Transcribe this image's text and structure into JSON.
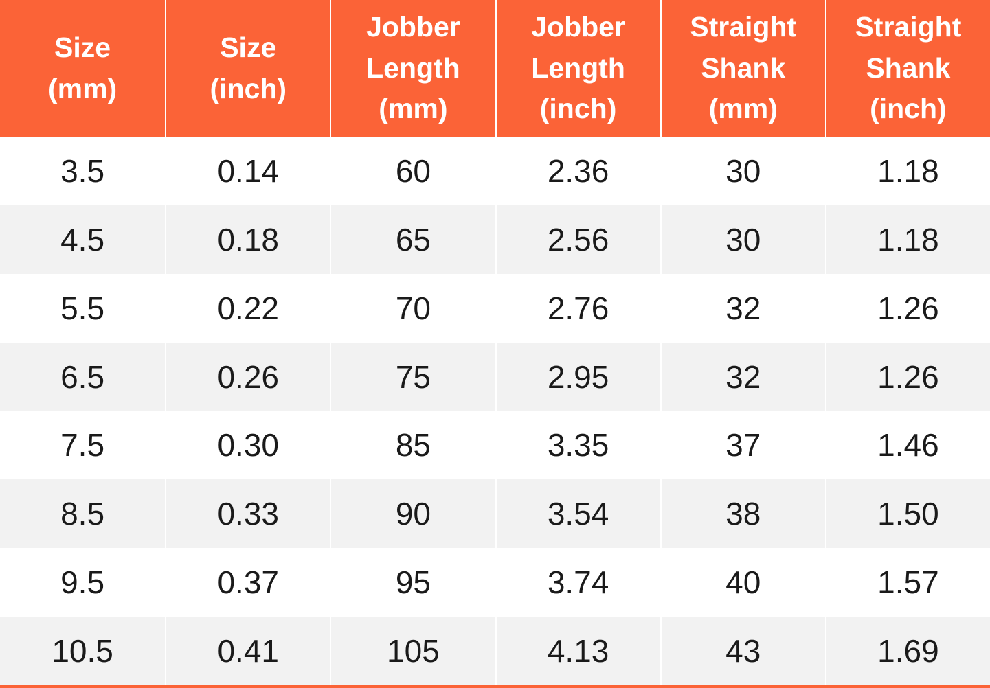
{
  "colors": {
    "accent": "#FB6337",
    "row_alt": "#F2F2F2",
    "header_text": "#FFFFFF",
    "cell_text": "#1A1A1A"
  },
  "table": {
    "headers": [
      "Size\n(mm)",
      "Size\n(inch)",
      "Jobber\nLength\n(mm)",
      "Jobber\nLength\n(inch)",
      "Straight\nShank\n(mm)",
      "Straight\nShank\n(inch)"
    ],
    "rows": [
      [
        "3.5",
        "0.14",
        "60",
        "2.36",
        "30",
        "1.18"
      ],
      [
        "4.5",
        "0.18",
        "65",
        "2.56",
        "30",
        "1.18"
      ],
      [
        "5.5",
        "0.22",
        "70",
        "2.76",
        "32",
        "1.26"
      ],
      [
        "6.5",
        "0.26",
        "75",
        "2.95",
        "32",
        "1.26"
      ],
      [
        "7.5",
        "0.30",
        "85",
        "3.35",
        "37",
        "1.46"
      ],
      [
        "8.5",
        "0.33",
        "90",
        "3.54",
        "38",
        "1.50"
      ],
      [
        "9.5",
        "0.37",
        "95",
        "3.74",
        "40",
        "1.57"
      ],
      [
        "10.5",
        "0.41",
        "105",
        "4.13",
        "43",
        "1.69"
      ]
    ]
  },
  "chart_data": {
    "type": "table",
    "columns": [
      "Size (mm)",
      "Size (inch)",
      "Jobber Length (mm)",
      "Jobber Length (inch)",
      "Straight Shank (mm)",
      "Straight Shank (inch)"
    ],
    "rows": [
      [
        3.5,
        0.14,
        60,
        2.36,
        30,
        1.18
      ],
      [
        4.5,
        0.18,
        65,
        2.56,
        30,
        1.18
      ],
      [
        5.5,
        0.22,
        70,
        2.76,
        32,
        1.26
      ],
      [
        6.5,
        0.26,
        75,
        2.95,
        32,
        1.26
      ],
      [
        7.5,
        0.3,
        85,
        3.35,
        37,
        1.46
      ],
      [
        8.5,
        0.33,
        90,
        3.54,
        38,
        1.5
      ],
      [
        9.5,
        0.37,
        95,
        3.74,
        40,
        1.57
      ],
      [
        10.5,
        0.41,
        105,
        4.13,
        43,
        1.69
      ]
    ],
    "layout": {
      "header_background": "#FB6337",
      "zebra_striping": true,
      "zebra_color": "#F2F2F2",
      "grid": "white column separators, orange bottom border"
    }
  }
}
